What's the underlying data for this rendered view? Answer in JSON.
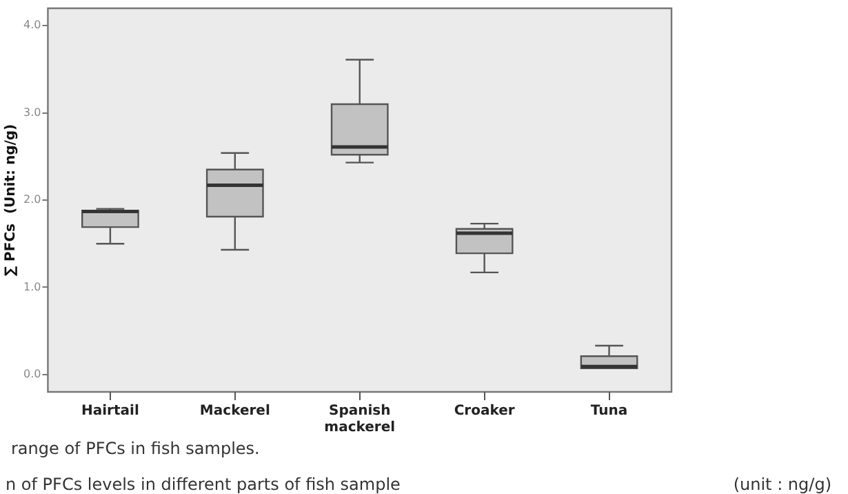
{
  "chart_data": {
    "type": "box",
    "ylabel": "∑ PFCs  (Unit: ng/g)",
    "categories": [
      "Hairtail",
      "Mackerel",
      "Spanish mackerel",
      "Croaker",
      "Tuna"
    ],
    "boxes": [
      {
        "low": 1.5,
        "q1": 1.69,
        "median": 1.87,
        "q3": 1.88,
        "high": 1.9
      },
      {
        "low": 1.43,
        "q1": 1.81,
        "median": 2.17,
        "q3": 2.35,
        "high": 2.54
      },
      {
        "low": 2.43,
        "q1": 2.52,
        "median": 2.61,
        "q3": 3.1,
        "high": 3.61
      },
      {
        "low": 1.17,
        "q1": 1.39,
        "median": 1.62,
        "q3": 1.67,
        "high": 1.73
      },
      {
        "low": 0.07,
        "q1": 0.07,
        "median": 0.09,
        "q3": 0.21,
        "high": 0.33
      }
    ],
    "color": "#c2c2c2",
    "ylim": [
      -0.2,
      4.2
    ],
    "yticks": [
      {
        "value": 0,
        "label": "0.0"
      },
      {
        "value": 1,
        "label": "1.0"
      },
      {
        "value": 2,
        "label": "2.0"
      },
      {
        "value": 3,
        "label": "3.0"
      },
      {
        "value": 4,
        "label": "4.0"
      }
    ],
    "grid": false,
    "annotations": [
      "range of PFCs in fish samples.",
      "n of PFCs levels in different parts of fish sample",
      "(unit : ng/g)"
    ]
  }
}
